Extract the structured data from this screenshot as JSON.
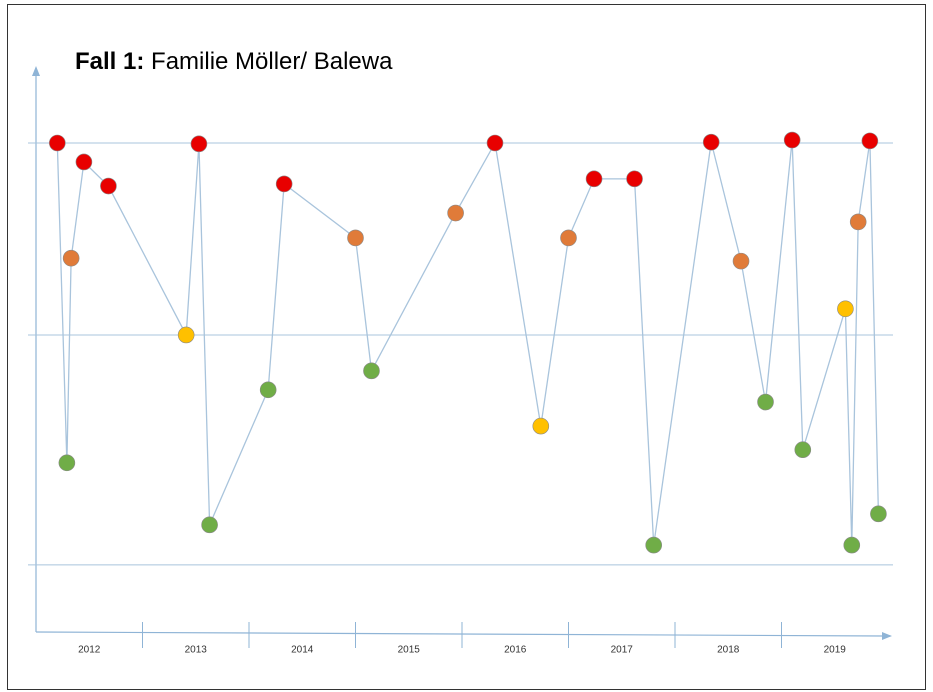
{
  "chart_data": {
    "type": "line",
    "title_label": "Fall 1:",
    "title": "Familie Möller/ Balewa",
    "categories": [
      "2012",
      "2013",
      "2014",
      "2015",
      "2016",
      "2017",
      "2018",
      "2019"
    ],
    "x": [
      2012.2,
      2012.29,
      2012.33,
      2012.45,
      2012.68,
      2013.41,
      2013.53,
      2013.63,
      2014.18,
      2014.33,
      2015.0,
      2015.15,
      2015.94,
      2016.31,
      2016.74,
      2017.0,
      2017.24,
      2017.62,
      2017.8,
      2018.34,
      2018.62,
      2018.85,
      2019.1,
      2019.2,
      2019.6,
      2019.66,
      2019.72,
      2019.83,
      2019.91
    ],
    "values": [
      100,
      24.2,
      72.7,
      95.5,
      89.8,
      54.5,
      99.8,
      9.5,
      41.5,
      90.3,
      77.5,
      46,
      83.4,
      100,
      32.9,
      77.5,
      91.5,
      91.5,
      4.7,
      100.2,
      72,
      38.6,
      100.7,
      27.3,
      60.7,
      4.7,
      81.3,
      100.5,
      12.1
    ],
    "colors": [
      "#e80000",
      "#70ad47",
      "#e07b39",
      "#e80000",
      "#e80000",
      "#ffc000",
      "#e80000",
      "#70ad47",
      "#70ad47",
      "#e80000",
      "#e07b39",
      "#70ad47",
      "#e07b39",
      "#e80000",
      "#ffc000",
      "#e07b39",
      "#e80000",
      "#e80000",
      "#70ad47",
      "#e80000",
      "#e07b39",
      "#70ad47",
      "#e80000",
      "#70ad47",
      "#ffc000",
      "#70ad47",
      "#e07b39",
      "#e80000",
      "#70ad47"
    ],
    "line_color": "#a9c4dc",
    "xlim": [
      2012,
      2020
    ],
    "xticks": [
      2013,
      2014,
      2015,
      2016,
      2017,
      2018,
      2019
    ],
    "ylim": [
      -15.9,
      117.3
    ],
    "yticks": [
      0,
      54.5,
      100
    ],
    "grid": true
  }
}
